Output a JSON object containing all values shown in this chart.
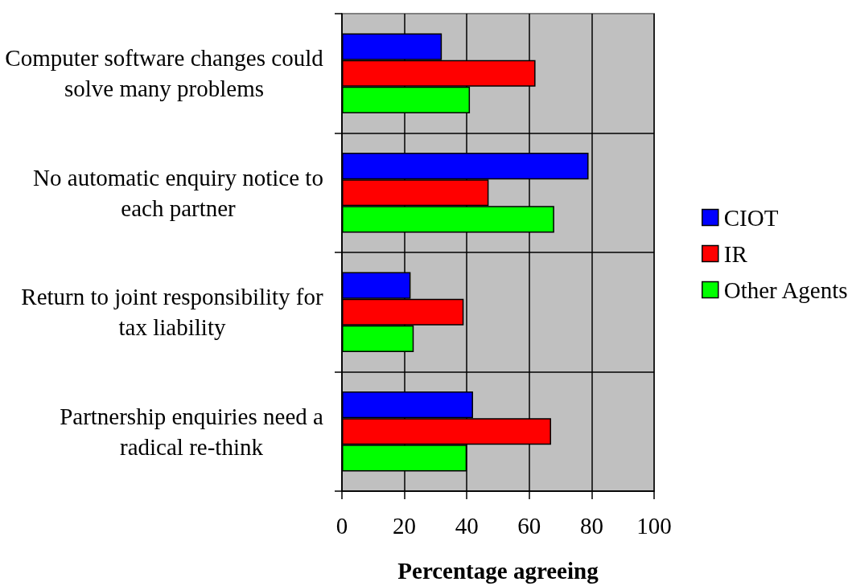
{
  "chart_data": {
    "type": "bar",
    "orientation": "horizontal",
    "categories": [
      "Computer software changes could solve many problems",
      "No automatic enquiry notice to each partner",
      "Return to joint responsibility for tax liability",
      "Partnership enquiries need a radical re-think"
    ],
    "series": [
      {
        "name": "CIOT",
        "color": "#0000ff",
        "values": [
          32,
          79,
          22,
          42
        ]
      },
      {
        "name": "IR",
        "color": "#ff0000",
        "values": [
          62,
          47,
          39,
          67
        ]
      },
      {
        "name": "Other Agents",
        "color": "#00ff00",
        "values": [
          41,
          68,
          23,
          40
        ]
      }
    ],
    "xlim": [
      0,
      100
    ],
    "xticks": [
      0,
      20,
      40,
      60,
      80,
      100
    ],
    "xlabel": "Percentage agreeing",
    "grid": true,
    "legend": "right"
  }
}
